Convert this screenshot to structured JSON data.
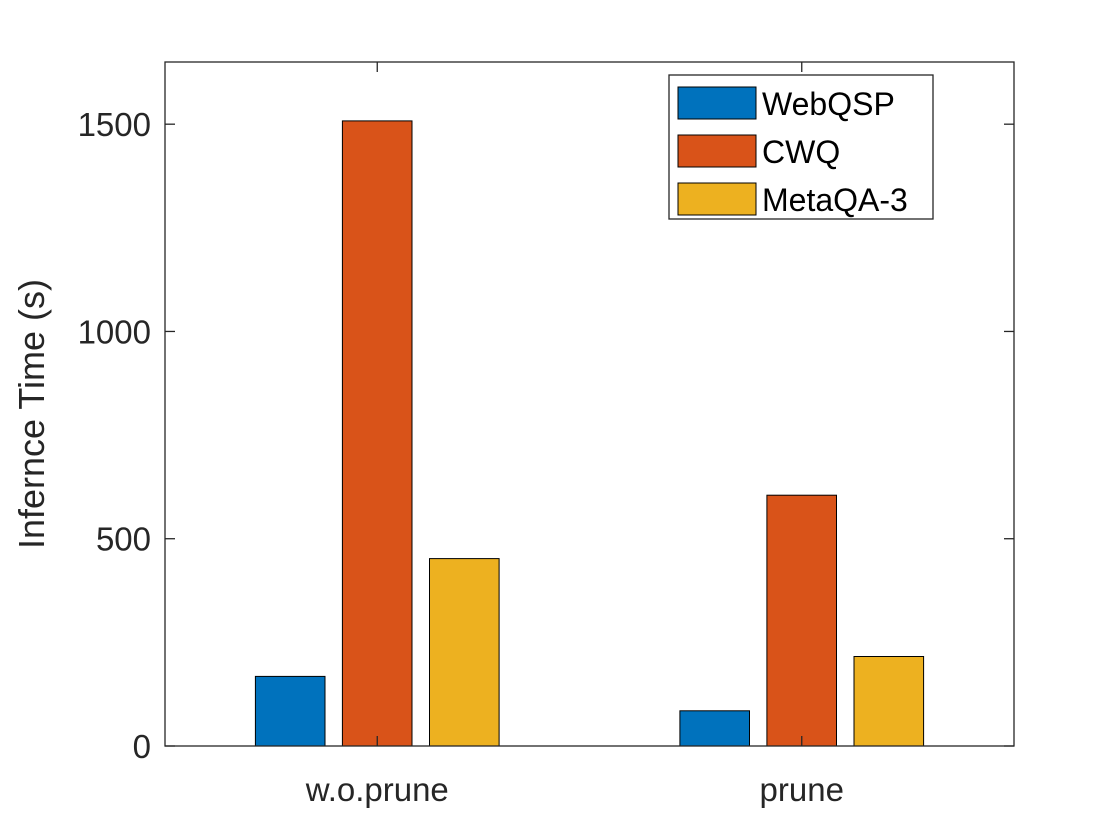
{
  "chart_data": {
    "type": "bar",
    "title": "",
    "xlabel": "",
    "ylabel": "Infernce Time (s)",
    "categories": [
      "w.o.prune",
      "prune"
    ],
    "series": [
      {
        "name": "WebQSP",
        "color": "#0072BD",
        "values": [
          168,
          85
        ]
      },
      {
        "name": "CWQ",
        "color": "#D95319",
        "values": [
          1508,
          605
        ]
      },
      {
        "name": "MetaQA-3",
        "color": "#EDB120",
        "values": [
          452,
          216
        ]
      }
    ],
    "ylim": [
      0,
      1650
    ],
    "yticks": [
      0,
      500,
      1000,
      1500
    ],
    "grid": false,
    "legend_position": "top-right"
  }
}
